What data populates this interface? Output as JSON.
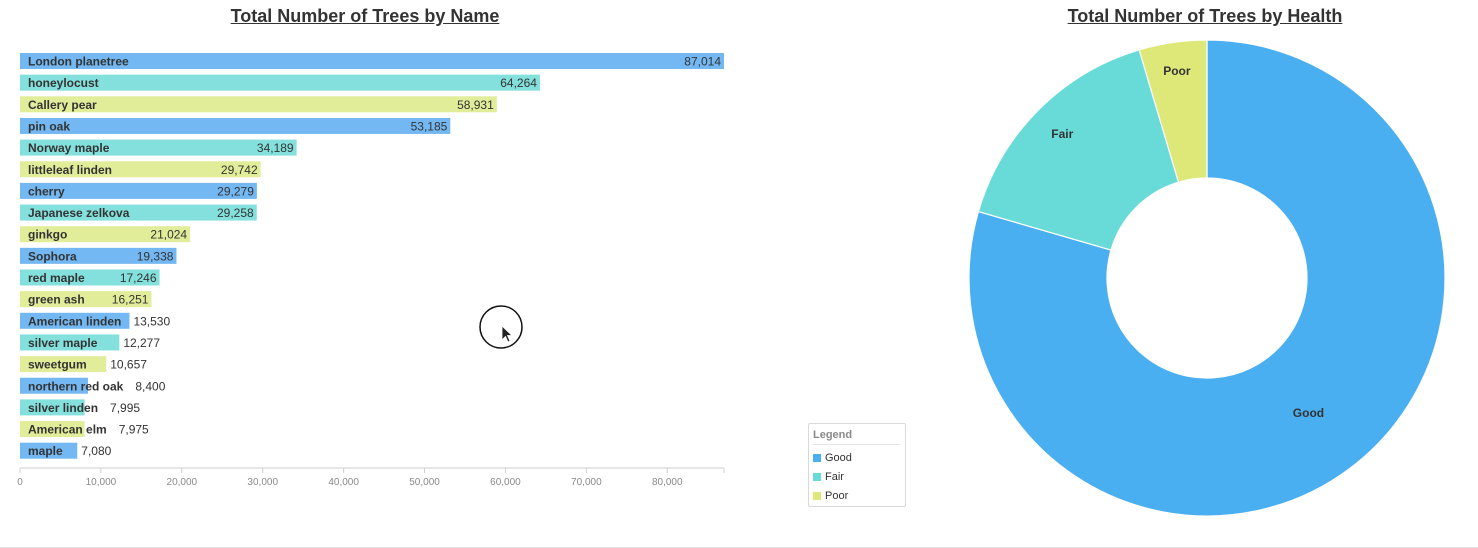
{
  "chart_data": [
    {
      "type": "bar",
      "orientation": "horizontal",
      "title": "Total Number of Trees by Name",
      "categories": [
        "London planetree",
        "honeylocust",
        "Callery pear",
        "pin oak",
        "Norway maple",
        "littleleaf linden",
        "cherry",
        "Japanese zelkova",
        "ginkgo",
        "Sophora",
        "red maple",
        "green ash",
        "American linden",
        "silver maple",
        "sweetgum",
        "northern red oak",
        "silver linden",
        "American elm",
        "maple"
      ],
      "values": [
        87014,
        64264,
        58931,
        53185,
        34189,
        29742,
        29279,
        29258,
        21024,
        19338,
        17246,
        16251,
        13530,
        12277,
        10657,
        8400,
        7995,
        7975,
        7080
      ],
      "value_labels": [
        "87,014",
        "64,264",
        "58,931",
        "53,185",
        "34,189",
        "29,742",
        "29,279",
        "29,258",
        "21,024",
        "19,338",
        "17,246",
        "16,251",
        "13,530",
        "12,277",
        "10,657",
        "8,400",
        "7,995",
        "7,975",
        "7,080"
      ],
      "bar_colors": [
        "#73b8f2",
        "#83e0dc",
        "#e2ed9a"
      ],
      "xlim": [
        0,
        87014
      ],
      "xticks": [
        0,
        10000,
        20000,
        30000,
        40000,
        50000,
        60000,
        70000,
        80000
      ],
      "xtick_labels": [
        "0",
        "10,000",
        "20,000",
        "30,000",
        "40,000",
        "50,000",
        "60,000",
        "70,000",
        "80,000"
      ],
      "xlabel": "",
      "ylabel": "",
      "grid": false
    },
    {
      "type": "pie",
      "variant": "donut",
      "title": "Total Number of Trees by Health",
      "labels": [
        "Good",
        "Fair",
        "Poor"
      ],
      "values": [
        79.5,
        15.9,
        4.6
      ],
      "colors": [
        "#4aaff0",
        "#68dbd8",
        "#dde879"
      ],
      "legend": {
        "title": "Legend",
        "position": "bottom-left",
        "items": [
          "Good",
          "Fair",
          "Poor"
        ]
      }
    }
  ]
}
